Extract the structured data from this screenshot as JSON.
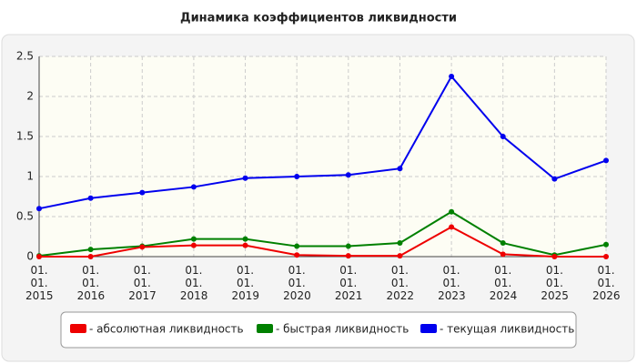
{
  "chart_data": {
    "type": "line",
    "title": "Динамика коэффициентов ликвидности",
    "categories": [
      "01. 01. 2015",
      "01. 01. 2016",
      "01. 01. 2017",
      "01. 01. 2018",
      "01. 01. 2019",
      "01. 01. 2020",
      "01. 01. 2021",
      "01. 01. 2022",
      "01. 01. 2023",
      "01. 01. 2024",
      "01. 01. 2025",
      "01. 01. 2026"
    ],
    "series": [
      {
        "name": "- абсолютная ликвидность",
        "color": "#ee0000",
        "values": [
          0.0,
          0.0,
          0.12,
          0.14,
          0.14,
          0.02,
          0.01,
          0.01,
          0.37,
          0.03,
          0.0,
          0.0
        ]
      },
      {
        "name": "- быстрая ликвидность",
        "color": "#008000",
        "values": [
          0.01,
          0.09,
          0.13,
          0.22,
          0.22,
          0.13,
          0.13,
          0.17,
          0.56,
          0.17,
          0.02,
          0.15
        ]
      },
      {
        "name": "- текущая ликвидность",
        "color": "#0000ee",
        "values": [
          0.6,
          0.73,
          0.8,
          0.87,
          0.98,
          1.0,
          1.02,
          1.1,
          2.25,
          1.5,
          0.97,
          1.2
        ]
      }
    ],
    "ylim": [
      0,
      2.5
    ],
    "yticks": [
      0,
      0.5,
      1,
      1.5,
      2,
      2.5
    ],
    "grid": true
  }
}
